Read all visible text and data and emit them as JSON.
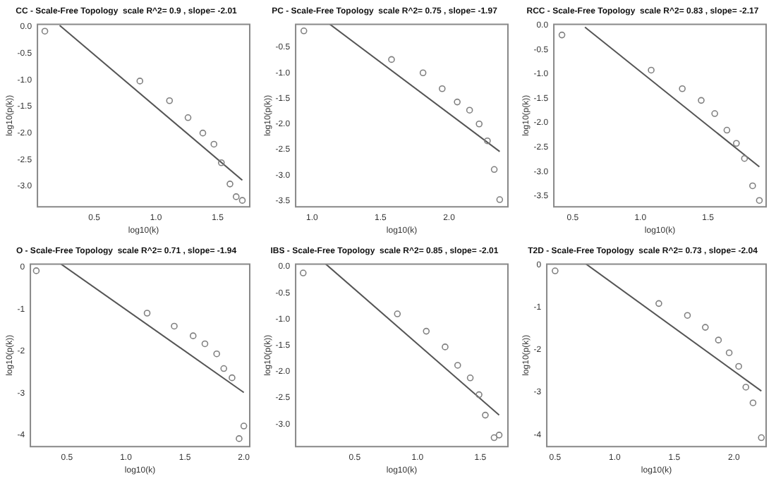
{
  "chart_data": [
    {
      "type": "scatter",
      "title": "CC - Scale-Free Topology  scale R^2= 0.9 , slope= -2.01",
      "xlabel": "log10(k)",
      "ylabel": "log10(p(k))",
      "xlim": [
        0.04,
        1.76
      ],
      "ylim": [
        -3.39,
        0.05
      ],
      "xticks": [
        {
          "value": 0.5,
          "label": "0.5"
        },
        {
          "value": 1,
          "label": "1.0"
        },
        {
          "value": 1.5,
          "label": "1.5"
        }
      ],
      "yticks": [
        {
          "value": 0,
          "label": "0.0"
        },
        {
          "value": -0.5,
          "label": "-0.5"
        },
        {
          "value": -1,
          "label": "-1.0"
        },
        {
          "value": -1.5,
          "label": "-1.5"
        },
        {
          "value": -2,
          "label": "-2.0"
        },
        {
          "value": -2.5,
          "label": "-2.5"
        },
        {
          "value": -3,
          "label": "-3.0"
        }
      ],
      "grid": false,
      "legend": false,
      "series": [
        {
          "type": "scatter",
          "marker": "circle",
          "color": "#808080",
          "x": [
            0.1,
            0.87,
            1.11,
            1.26,
            1.38,
            1.47,
            1.53,
            1.6,
            1.65,
            1.7
          ],
          "values": [
            -0.08,
            -1.02,
            -1.39,
            -1.71,
            -2.0,
            -2.21,
            -2.56,
            -2.96,
            -3.2,
            -3.27
          ]
        },
        {
          "type": "line",
          "marker": "none",
          "color": "#555555",
          "x": [
            0.22,
            1.7
          ],
          "values": [
            0.03,
            -2.89
          ]
        }
      ]
    },
    {
      "type": "scatter",
      "title": "PC - Scale-Free Topology  scale R^2= 0.75 , slope= -1.97",
      "xlabel": "log10(k)",
      "ylabel": "log10(p(k))",
      "xlim": [
        0.88,
        2.43
      ],
      "ylim": [
        -3.62,
        -0.05
      ],
      "xticks": [
        {
          "value": 1,
          "label": "1.0"
        },
        {
          "value": 1.5,
          "label": "1.5"
        },
        {
          "value": 2,
          "label": "2.0"
        }
      ],
      "yticks": [
        {
          "value": -0.5,
          "label": "-0.5"
        },
        {
          "value": -1,
          "label": "-1.0"
        },
        {
          "value": -1.5,
          "label": "-1.5"
        },
        {
          "value": -2,
          "label": "-2.0"
        },
        {
          "value": -2.5,
          "label": "-2.5"
        },
        {
          "value": -3,
          "label": "-3.0"
        },
        {
          "value": -3.5,
          "label": "-3.5"
        }
      ],
      "grid": false,
      "legend": false,
      "series": [
        {
          "type": "scatter",
          "marker": "circle",
          "color": "#808080",
          "x": [
            0.94,
            1.58,
            1.81,
            1.95,
            2.06,
            2.15,
            2.22,
            2.28,
            2.33,
            2.37
          ],
          "values": [
            -0.18,
            -0.74,
            -1.0,
            -1.31,
            -1.57,
            -1.73,
            -2.0,
            -2.33,
            -2.89,
            -3.48
          ]
        },
        {
          "type": "line",
          "marker": "none",
          "color": "#555555",
          "x": [
            1.13,
            2.37
          ],
          "values": [
            -0.05,
            -2.54
          ]
        }
      ]
    },
    {
      "type": "scatter",
      "title": "RCC - Scale-Free Topology  scale R^2= 0.83 , slope= -2.17",
      "xlabel": "log10(k)",
      "ylabel": "log10(p(k))",
      "xlim": [
        0.36,
        1.93
      ],
      "ylim": [
        -3.72,
        0.02
      ],
      "xticks": [
        {
          "value": 0.5,
          "label": "0.5"
        },
        {
          "value": 1,
          "label": "1.0"
        },
        {
          "value": 1.5,
          "label": "1.5"
        }
      ],
      "yticks": [
        {
          "value": 0,
          "label": "0.0"
        },
        {
          "value": -0.5,
          "label": "-0.5"
        },
        {
          "value": -1,
          "label": "-1.0"
        },
        {
          "value": -1.5,
          "label": "-1.5"
        },
        {
          "value": -2,
          "label": "-2.0"
        },
        {
          "value": -2.5,
          "label": "-2.5"
        },
        {
          "value": -3,
          "label": "-3.0"
        },
        {
          "value": -3.5,
          "label": "-3.5"
        }
      ],
      "grid": false,
      "legend": false,
      "series": [
        {
          "type": "scatter",
          "marker": "circle",
          "color": "#808080",
          "x": [
            0.42,
            1.08,
            1.31,
            1.45,
            1.55,
            1.64,
            1.71,
            1.77,
            1.83,
            1.88
          ],
          "values": [
            -0.2,
            -0.92,
            -1.3,
            -1.54,
            -1.81,
            -2.15,
            -2.42,
            -2.73,
            -3.29,
            -3.59
          ]
        },
        {
          "type": "line",
          "marker": "none",
          "color": "#555555",
          "x": [
            0.59,
            1.88
          ],
          "values": [
            -0.04,
            -2.9
          ]
        }
      ]
    },
    {
      "type": "scatter",
      "title": "O - Scale-Free Topology  scale R^2= 0.71 , slope= -1.94",
      "xlabel": "log10(k)",
      "ylabel": "log10(p(k))",
      "xlim": [
        0.19,
        2.05
      ],
      "ylim": [
        -4.27,
        0.08
      ],
      "xticks": [
        {
          "value": 0.5,
          "label": "0.5"
        },
        {
          "value": 1,
          "label": "1.0"
        },
        {
          "value": 1.5,
          "label": "1.5"
        },
        {
          "value": 2,
          "label": "2.0"
        }
      ],
      "yticks": [
        0,
        -1,
        -2,
        -3,
        -4
      ],
      "grid": false,
      "legend": false,
      "series": [
        {
          "type": "scatter",
          "marker": "circle",
          "color": "#808080",
          "x": [
            0.24,
            1.18,
            1.41,
            1.57,
            1.67,
            1.77,
            1.83,
            1.9,
            1.96,
            2.0
          ],
          "values": [
            -0.08,
            -1.09,
            -1.4,
            -1.63,
            -1.82,
            -2.06,
            -2.41,
            -2.63,
            -4.08,
            -3.78
          ]
        },
        {
          "type": "line",
          "marker": "none",
          "color": "#555555",
          "x": [
            0.45,
            2.0
          ],
          "values": [
            0.08,
            -2.98
          ]
        }
      ]
    },
    {
      "type": "scatter",
      "title": "IBS - Scale-Free Topology  scale R^2= 0.85 , slope= -2.01",
      "xlabel": "log10(k)",
      "ylabel": "log10(p(k))",
      "xlim": [
        0.03,
        1.72
      ],
      "ylim": [
        -3.43,
        0.05
      ],
      "xticks": [
        {
          "value": 0.5,
          "label": "0.5"
        },
        {
          "value": 1,
          "label": "1.0"
        },
        {
          "value": 1.5,
          "label": "1.5"
        }
      ],
      "yticks": [
        {
          "value": 0,
          "label": "0.0"
        },
        {
          "value": -0.5,
          "label": "-0.5"
        },
        {
          "value": -1,
          "label": "-1.0"
        },
        {
          "value": -1.5,
          "label": "-1.5"
        },
        {
          "value": -2,
          "label": "-2.0"
        },
        {
          "value": -2.5,
          "label": "-2.5"
        },
        {
          "value": -3,
          "label": "-3.0"
        }
      ],
      "grid": false,
      "legend": false,
      "series": [
        {
          "type": "scatter",
          "marker": "circle",
          "color": "#808080",
          "x": [
            0.09,
            0.84,
            1.07,
            1.22,
            1.32,
            1.42,
            1.49,
            1.54,
            1.61,
            1.65
          ],
          "values": [
            -0.12,
            -0.9,
            -1.23,
            -1.53,
            -1.88,
            -2.12,
            -2.44,
            -2.83,
            -3.26,
            -3.21
          ]
        },
        {
          "type": "line",
          "marker": "none",
          "color": "#555555",
          "x": [
            0.27,
            1.65
          ],
          "values": [
            0.05,
            -2.83
          ]
        }
      ]
    },
    {
      "type": "scatter",
      "title": "T2D - Scale-Free Topology  scale R^2= 0.73 , slope= -2.04",
      "xlabel": "log10(k)",
      "ylabel": "log10(p(k))",
      "xlim": [
        0.43,
        2.27
      ],
      "ylim": [
        -4.28,
        0.02
      ],
      "xticks": [
        {
          "value": 0.5,
          "label": "0.5"
        },
        {
          "value": 1,
          "label": "1.0"
        },
        {
          "value": 1.5,
          "label": "1.5"
        },
        {
          "value": 2,
          "label": "2.0"
        }
      ],
      "yticks": [
        0,
        -1,
        -2,
        -3,
        -4
      ],
      "grid": false,
      "legend": false,
      "series": [
        {
          "type": "scatter",
          "marker": "circle",
          "color": "#808080",
          "x": [
            0.5,
            1.37,
            1.61,
            1.76,
            1.87,
            1.96,
            2.04,
            2.1,
            2.16,
            2.23
          ],
          "values": [
            -0.14,
            -0.91,
            -1.19,
            -1.47,
            -1.77,
            -2.07,
            -2.39,
            -2.88,
            -3.25,
            -4.07
          ]
        },
        {
          "type": "line",
          "marker": "none",
          "color": "#555555",
          "x": [
            0.76,
            2.23
          ],
          "values": [
            0.02,
            -2.97
          ]
        }
      ]
    }
  ]
}
